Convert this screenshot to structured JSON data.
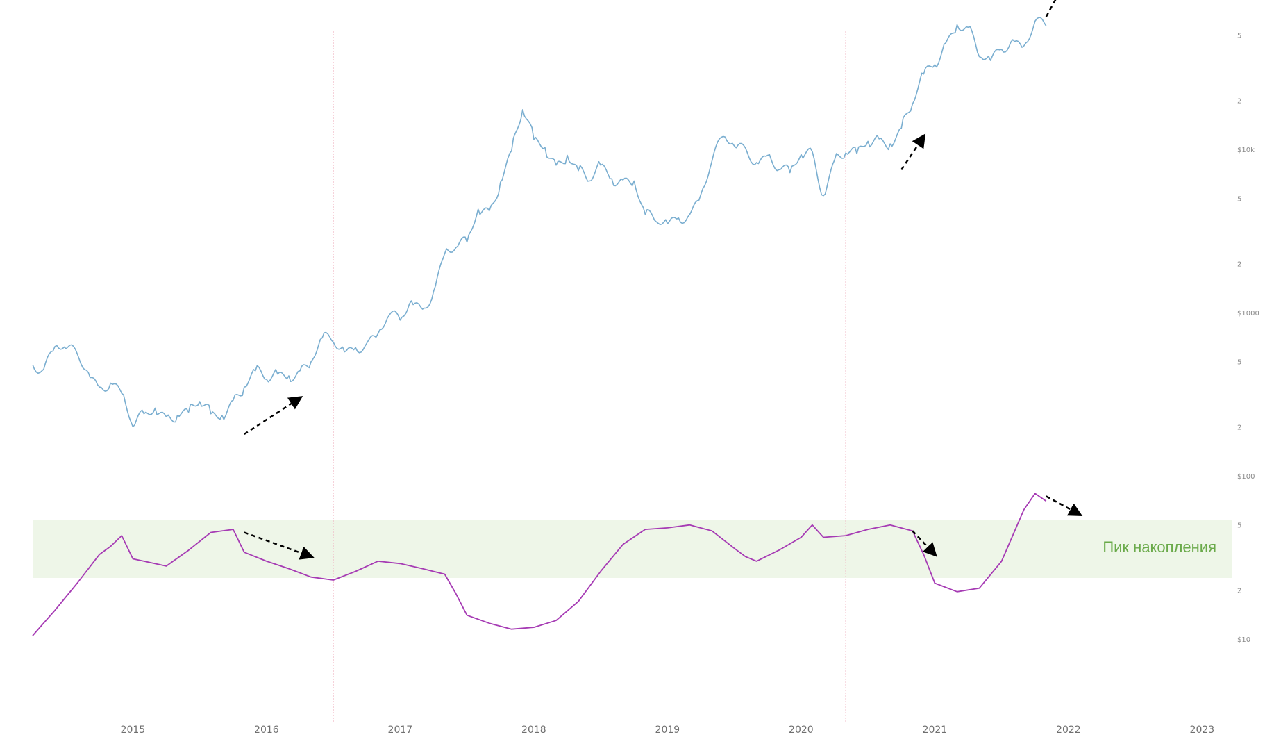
{
  "chart_data": {
    "type": "line",
    "title": "",
    "x_axis": {
      "ticks": [
        "2015",
        "2016",
        "2017",
        "2018",
        "2019",
        "2020",
        "2021",
        "2022",
        "2023"
      ],
      "range": [
        "2014-04",
        "2023-01"
      ]
    },
    "y_axis": {
      "scale": "log",
      "ticks": [
        "$10",
        "2",
        "5",
        "$100",
        "2",
        "5",
        "$1000",
        "2",
        "5",
        "$10k",
        "2",
        "5"
      ],
      "position": "right"
    },
    "highlight_zone": {
      "label": "Пик накопления",
      "color": "#eef6e8"
    },
    "vertical_markers": [
      "2016-07",
      "2020-05"
    ],
    "series": [
      {
        "color": "#7aaed0",
        "points": [
          [
            "2014-04",
            480
          ],
          [
            "2014-05",
            450
          ],
          [
            "2014-06",
            620
          ],
          [
            "2014-07",
            600
          ],
          [
            "2014-08",
            560
          ],
          [
            "2014-09",
            430
          ],
          [
            "2014-10",
            350
          ],
          [
            "2014-11",
            370
          ],
          [
            "2014-12",
            320
          ],
          [
            "2015-01",
            200
          ],
          [
            "2015-02",
            240
          ],
          [
            "2015-03",
            260
          ],
          [
            "2015-04",
            230
          ],
          [
            "2015-05",
            235
          ],
          [
            "2015-06",
            245
          ],
          [
            "2015-07",
            285
          ],
          [
            "2015-08",
            240
          ],
          [
            "2015-09",
            235
          ],
          [
            "2015-10",
            290
          ],
          [
            "2015-11",
            350
          ],
          [
            "2015-12",
            440
          ],
          [
            "2016-01",
            390
          ],
          [
            "2016-02",
            420
          ],
          [
            "2016-03",
            410
          ],
          [
            "2016-04",
            440
          ],
          [
            "2016-05",
            500
          ],
          [
            "2016-06",
            700
          ],
          [
            "2016-07",
            660
          ],
          [
            "2016-08",
            575
          ],
          [
            "2016-09",
            610
          ],
          [
            "2016-10",
            650
          ],
          [
            "2016-11",
            740
          ],
          [
            "2016-12",
            960
          ],
          [
            "2017-01",
            900
          ],
          [
            "2017-02",
            1180
          ],
          [
            "2017-03",
            1050
          ],
          [
            "2017-04",
            1350
          ],
          [
            "2017-05",
            2300
          ],
          [
            "2017-06",
            2500
          ],
          [
            "2017-07",
            2700
          ],
          [
            "2017-08",
            4300
          ],
          [
            "2017-09",
            4200
          ],
          [
            "2017-10",
            6300
          ],
          [
            "2017-11",
            9800
          ],
          [
            "2017-12",
            17500
          ],
          [
            "2018-01",
            11500
          ],
          [
            "2018-02",
            10300
          ],
          [
            "2018-03",
            8000
          ],
          [
            "2018-04",
            9200
          ],
          [
            "2018-05",
            7400
          ],
          [
            "2018-06",
            6400
          ],
          [
            "2018-07",
            8000
          ],
          [
            "2018-08",
            6600
          ],
          [
            "2018-09",
            6500
          ],
          [
            "2018-10",
            6400
          ],
          [
            "2018-11",
            4000
          ],
          [
            "2018-12",
            3600
          ],
          [
            "2019-01",
            3500
          ],
          [
            "2019-02",
            3800
          ],
          [
            "2019-03",
            4000
          ],
          [
            "2019-04",
            5300
          ],
          [
            "2019-05",
            8500
          ],
          [
            "2019-06",
            12000
          ],
          [
            "2019-07",
            10500
          ],
          [
            "2019-08",
            10200
          ],
          [
            "2019-09",
            8300
          ],
          [
            "2019-10",
            9200
          ],
          [
            "2019-11",
            7500
          ],
          [
            "2019-12",
            7200
          ],
          [
            "2020-01",
            9300
          ],
          [
            "2020-02",
            9700
          ],
          [
            "2020-03",
            5200
          ],
          [
            "2020-04",
            8600
          ],
          [
            "2020-05",
            9500
          ],
          [
            "2020-06",
            9400
          ],
          [
            "2020-07",
            11200
          ],
          [
            "2020-08",
            11600
          ],
          [
            "2020-09",
            10800
          ],
          [
            "2020-10",
            13500
          ],
          [
            "2020-11",
            19000
          ],
          [
            "2020-12",
            28900
          ],
          [
            "2021-01",
            33000
          ],
          [
            "2021-02",
            45000
          ],
          [
            "2021-03",
            58000
          ],
          [
            "2021-04",
            56000
          ],
          [
            "2021-05",
            37000
          ],
          [
            "2021-06",
            35000
          ],
          [
            "2021-07",
            41000
          ],
          [
            "2021-08",
            47000
          ],
          [
            "2021-09",
            43000
          ],
          [
            "2021-10",
            61000
          ],
          [
            "2021-11",
            57000
          ]
        ]
      },
      {
        "color": "#a63bb4",
        "points": [
          [
            "2014-04",
            10.5
          ],
          [
            "2014-06",
            15
          ],
          [
            "2014-08",
            22
          ],
          [
            "2014-10",
            33
          ],
          [
            "2014-11",
            37
          ],
          [
            "2014-12",
            43
          ],
          [
            "2015-01",
            31
          ],
          [
            "2015-02",
            30
          ],
          [
            "2015-04",
            28
          ],
          [
            "2015-06",
            35
          ],
          [
            "2015-08",
            45
          ],
          [
            "2015-10",
            47
          ],
          [
            "2015-11",
            34
          ],
          [
            "2016-01",
            30
          ],
          [
            "2016-03",
            27
          ],
          [
            "2016-05",
            24
          ],
          [
            "2016-07",
            23
          ],
          [
            "2016-09",
            26
          ],
          [
            "2016-11",
            30
          ],
          [
            "2017-01",
            29
          ],
          [
            "2017-03",
            27
          ],
          [
            "2017-05",
            25
          ],
          [
            "2017-06",
            19
          ],
          [
            "2017-07",
            14
          ],
          [
            "2017-09",
            12.5
          ],
          [
            "2017-11",
            11.5
          ],
          [
            "2018-01",
            11.8
          ],
          [
            "2018-03",
            13
          ],
          [
            "2018-05",
            17
          ],
          [
            "2018-07",
            26
          ],
          [
            "2018-09",
            38
          ],
          [
            "2018-11",
            47
          ],
          [
            "2019-01",
            48
          ],
          [
            "2019-03",
            50
          ],
          [
            "2019-05",
            46
          ],
          [
            "2019-07",
            36
          ],
          [
            "2019-08",
            32
          ],
          [
            "2019-09",
            30
          ],
          [
            "2019-11",
            35
          ],
          [
            "2020-01",
            42
          ],
          [
            "2020-02",
            50
          ],
          [
            "2020-03",
            42
          ],
          [
            "2020-05",
            43
          ],
          [
            "2020-07",
            47
          ],
          [
            "2020-09",
            50
          ],
          [
            "2020-11",
            46
          ],
          [
            "2020-12",
            33
          ],
          [
            "2021-01",
            22
          ],
          [
            "2021-03",
            19.5
          ],
          [
            "2021-05",
            20.5
          ],
          [
            "2021-07",
            30
          ],
          [
            "2021-09",
            62
          ],
          [
            "2021-10",
            78
          ],
          [
            "2021-11",
            70
          ]
        ]
      }
    ],
    "trend_arrows": [
      {
        "from": [
          "2015-11",
          180
        ],
        "to": [
          "2016-04",
          300
        ]
      },
      {
        "from": [
          "2020-10",
          7500
        ],
        "to": [
          "2020-12",
          12000
        ]
      },
      {
        "from": [
          "2021-11",
          65000
        ],
        "to": [
          "2022-01",
          115000
        ]
      },
      {
        "from": [
          "2015-11",
          45
        ],
        "to": [
          "2016-05",
          32
        ]
      },
      {
        "from": [
          "2020-11",
          46
        ],
        "to": [
          "2021-01",
          33
        ]
      },
      {
        "from": [
          "2021-11",
          75
        ],
        "to": [
          "2022-02",
          58
        ]
      }
    ]
  }
}
